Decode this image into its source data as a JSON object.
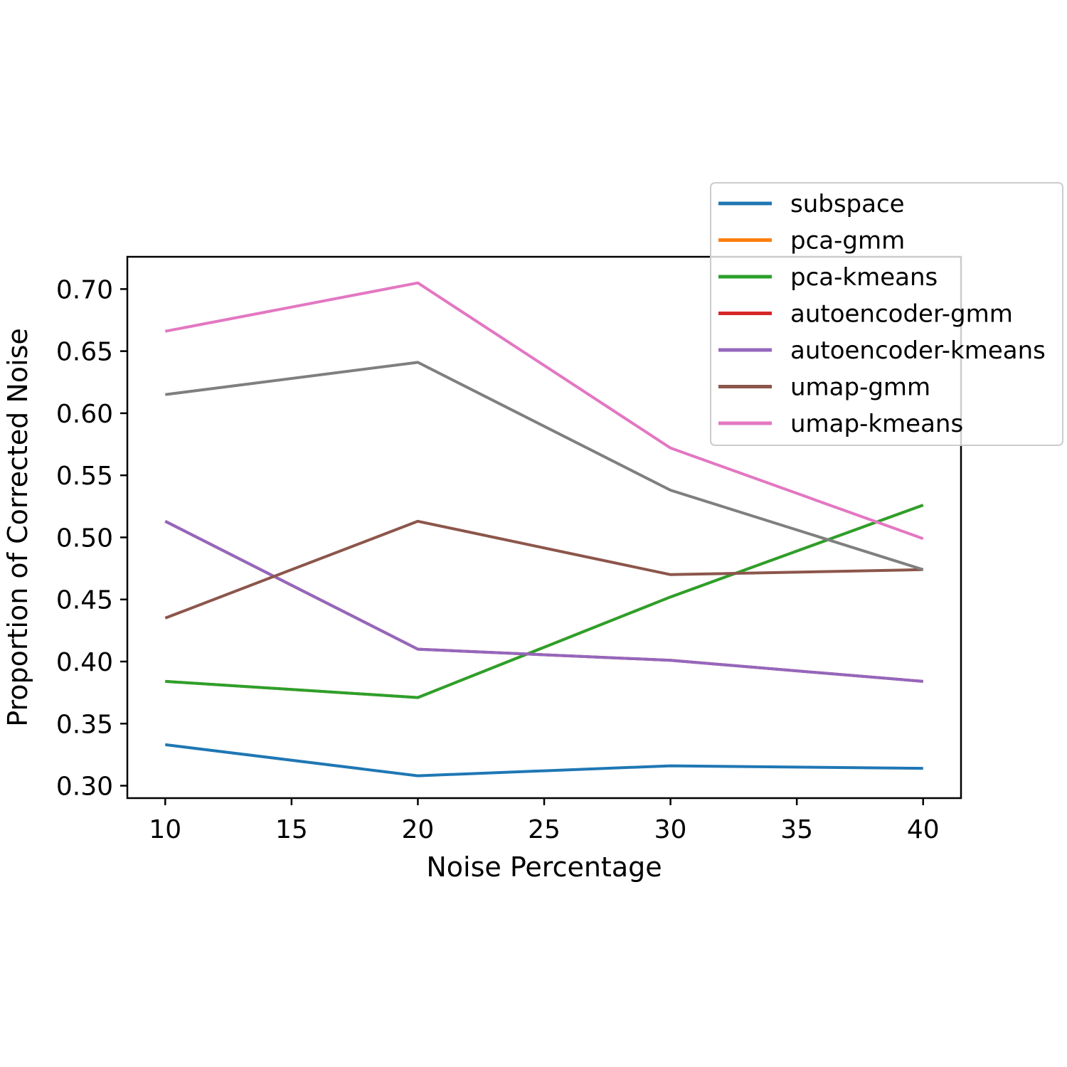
{
  "chart_data": {
    "type": "line",
    "title": "",
    "xlabel": "Noise Percentage",
    "ylabel": "Proportion of Corrected Noise",
    "x": [
      10,
      20,
      30,
      40
    ],
    "xlim": [
      8.5,
      41.5
    ],
    "ylim": [
      0.29,
      0.726
    ],
    "xticks": [
      10,
      15,
      20,
      25,
      30,
      35,
      40
    ],
    "xtick_labels": [
      "10",
      "15",
      "20",
      "25",
      "30",
      "35",
      "40"
    ],
    "yticks": [
      0.3,
      0.35,
      0.4,
      0.45,
      0.5,
      0.55,
      0.6,
      0.65,
      0.7
    ],
    "ytick_labels": [
      "0.30",
      "0.35",
      "0.40",
      "0.45",
      "0.50",
      "0.55",
      "0.60",
      "0.65",
      "0.70"
    ],
    "grid": false,
    "legend_position": "top-right",
    "series": [
      {
        "name": "subspace",
        "color": "#1f77b4",
        "values": [
          0.333,
          0.308,
          0.316,
          0.314
        ],
        "in_legend": true
      },
      {
        "name": "pca-gmm",
        "color": "#ff7f0e",
        "values": [
          0.384,
          0.371,
          0.452,
          0.526
        ],
        "in_legend": true
      },
      {
        "name": "pca-kmeans",
        "color": "#2ca02c",
        "values": [
          0.384,
          0.371,
          0.452,
          0.526
        ],
        "in_legend": true
      },
      {
        "name": "autoencoder-gmm",
        "color": "#d62728",
        "values": [
          0.513,
          0.41,
          0.401,
          0.384
        ],
        "in_legend": true
      },
      {
        "name": "autoencoder-kmeans",
        "color": "#9467bd",
        "values": [
          0.513,
          0.41,
          0.401,
          0.384
        ],
        "in_legend": true
      },
      {
        "name": "umap-gmm",
        "color": "#8c564b",
        "values": [
          0.435,
          0.513,
          0.47,
          0.474
        ],
        "in_legend": true
      },
      {
        "name": "umap-kmeans",
        "color": "#e377c2",
        "values": [
          0.666,
          0.705,
          0.572,
          0.499
        ],
        "in_legend": true
      },
      {
        "name": "",
        "color": "#7f7f7f",
        "values": [
          0.615,
          0.641,
          0.538,
          0.474
        ],
        "in_legend": false
      }
    ]
  }
}
